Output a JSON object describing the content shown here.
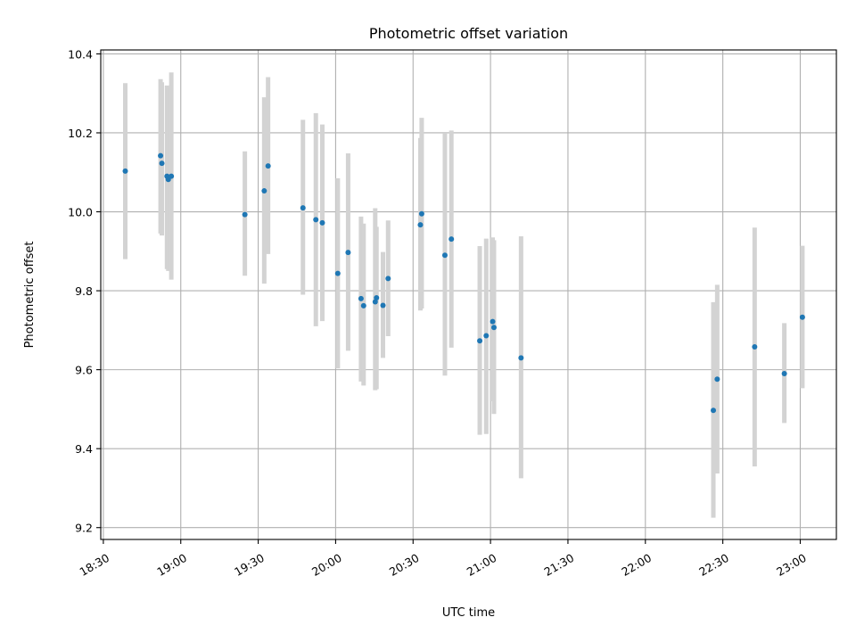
{
  "chart_data": {
    "type": "scatter",
    "title": "Photometric offset variation",
    "xlabel": "UTC time",
    "ylabel": "Photometric offset",
    "x_unit": "UTC time (HH:MM)",
    "xlim": [
      "18:29",
      "23:14"
    ],
    "ylim": [
      9.17,
      10.41
    ],
    "x_ticks": [
      "18:30",
      "19:00",
      "19:30",
      "20:00",
      "20:30",
      "21:00",
      "21:30",
      "22:00",
      "22:30",
      "23:00"
    ],
    "y_ticks": [
      9.2,
      9.4,
      9.6,
      9.8,
      10.0,
      10.2,
      10.4
    ],
    "y_tick_labels": [
      "9.2",
      "9.4",
      "9.6",
      "9.8",
      "10.0",
      "10.2",
      "10.4"
    ],
    "grid": true,
    "legend": "none",
    "series": [
      {
        "point_color": "#1f77b4",
        "errorbar_color": "#d3d3d3",
        "points": [
          {
            "t": "18:38:30",
            "y": 10.103,
            "low": 9.88,
            "high": 10.326
          },
          {
            "t": "18:52:10",
            "y": 10.142,
            "low": 9.945,
            "high": 10.336
          },
          {
            "t": "18:52:40",
            "y": 10.123,
            "low": 9.94,
            "high": 10.328
          },
          {
            "t": "18:54:40",
            "y": 10.09,
            "low": 9.855,
            "high": 10.32
          },
          {
            "t": "18:55:10",
            "y": 10.082,
            "low": 9.85,
            "high": 10.315
          },
          {
            "t": "18:56:20",
            "y": 10.09,
            "low": 9.828,
            "high": 10.353
          },
          {
            "t": "19:24:50",
            "y": 9.993,
            "low": 9.838,
            "high": 10.153
          },
          {
            "t": "19:32:20",
            "y": 10.053,
            "low": 9.818,
            "high": 10.29
          },
          {
            "t": "19:33:50",
            "y": 10.116,
            "low": 9.893,
            "high": 10.341
          },
          {
            "t": "19:47:20",
            "y": 10.01,
            "low": 9.79,
            "high": 10.233
          },
          {
            "t": "19:52:20",
            "y": 9.98,
            "low": 9.71,
            "high": 10.25
          },
          {
            "t": "19:54:50",
            "y": 9.972,
            "low": 9.723,
            "high": 10.221
          },
          {
            "t": "20:00:50",
            "y": 9.844,
            "low": 9.603,
            "high": 10.085
          },
          {
            "t": "20:04:50",
            "y": 9.897,
            "low": 9.648,
            "high": 10.148
          },
          {
            "t": "20:09:50",
            "y": 9.78,
            "low": 9.57,
            "high": 9.988
          },
          {
            "t": "20:10:50",
            "y": 9.762,
            "low": 9.56,
            "high": 9.97
          },
          {
            "t": "20:15:20",
            "y": 9.772,
            "low": 9.548,
            "high": 10.009
          },
          {
            "t": "20:15:50",
            "y": 9.782,
            "low": 9.551,
            "high": 9.962
          },
          {
            "t": "20:18:20",
            "y": 9.763,
            "low": 9.63,
            "high": 9.898
          },
          {
            "t": "20:20:20",
            "y": 9.831,
            "low": 9.685,
            "high": 9.978
          },
          {
            "t": "20:32:50",
            "y": 9.967,
            "low": 9.75,
            "high": 10.187
          },
          {
            "t": "20:33:20",
            "y": 9.995,
            "low": 9.755,
            "high": 10.238
          },
          {
            "t": "20:42:20",
            "y": 9.89,
            "low": 9.585,
            "high": 10.198
          },
          {
            "t": "20:44:50",
            "y": 9.931,
            "low": 9.656,
            "high": 10.206
          },
          {
            "t": "20:55:50",
            "y": 9.673,
            "low": 9.435,
            "high": 9.913
          },
          {
            "t": "20:58:20",
            "y": 9.686,
            "low": 9.437,
            "high": 9.932
          },
          {
            "t": "21:00:50",
            "y": 9.722,
            "low": 9.52,
            "high": 9.935
          },
          {
            "t": "21:01:20",
            "y": 9.707,
            "low": 9.488,
            "high": 9.928
          },
          {
            "t": "21:11:50",
            "y": 9.63,
            "low": 9.325,
            "high": 9.938
          },
          {
            "t": "22:26:20",
            "y": 9.497,
            "low": 9.225,
            "high": 9.771
          },
          {
            "t": "22:27:50",
            "y": 9.576,
            "low": 9.337,
            "high": 9.815
          },
          {
            "t": "22:42:20",
            "y": 9.658,
            "low": 9.355,
            "high": 9.96
          },
          {
            "t": "22:53:50",
            "y": 9.59,
            "low": 9.465,
            "high": 9.718
          },
          {
            "t": "23:00:50",
            "y": 9.733,
            "low": 9.553,
            "high": 9.914
          }
        ]
      }
    ]
  }
}
